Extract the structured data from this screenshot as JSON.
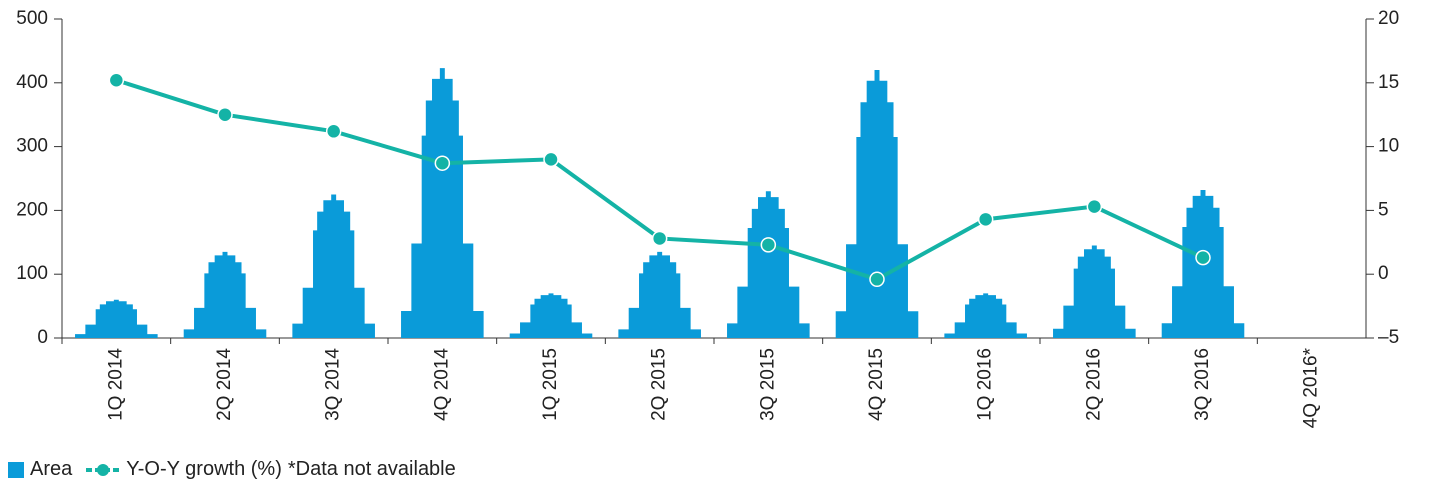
{
  "chart_data": {
    "type": "bar",
    "categories": [
      "1Q 2014",
      "2Q 2014",
      "3Q 2014",
      "4Q 2014",
      "1Q 2015",
      "2Q 2015",
      "3Q 2015",
      "4Q 2015",
      "1Q 2016",
      "2Q 2016",
      "3Q 2016",
      "4Q 2016*"
    ],
    "series": [
      {
        "name": "Area",
        "type": "bar",
        "color": "#0a9bd9",
        "values": [
          60,
          135,
          225,
          423,
          70,
          135,
          230,
          420,
          70,
          145,
          232,
          null
        ]
      },
      {
        "name": "Y-O-Y growth (%)",
        "type": "line",
        "axis": "y2",
        "color": "#14b3a6",
        "values": [
          15.2,
          12.5,
          11.2,
          8.7,
          9.0,
          2.8,
          2.3,
          -0.4,
          4.3,
          5.3,
          1.3,
          null
        ]
      }
    ],
    "ylim": [
      0,
      500
    ],
    "yticks": [
      0,
      100,
      200,
      300,
      400,
      500
    ],
    "y2lim": [
      -5,
      20
    ],
    "y2ticks": [
      {
        "value": -5,
        "label": "–5"
      },
      0,
      5,
      10,
      15,
      20
    ],
    "note": "*Data not available"
  }
}
